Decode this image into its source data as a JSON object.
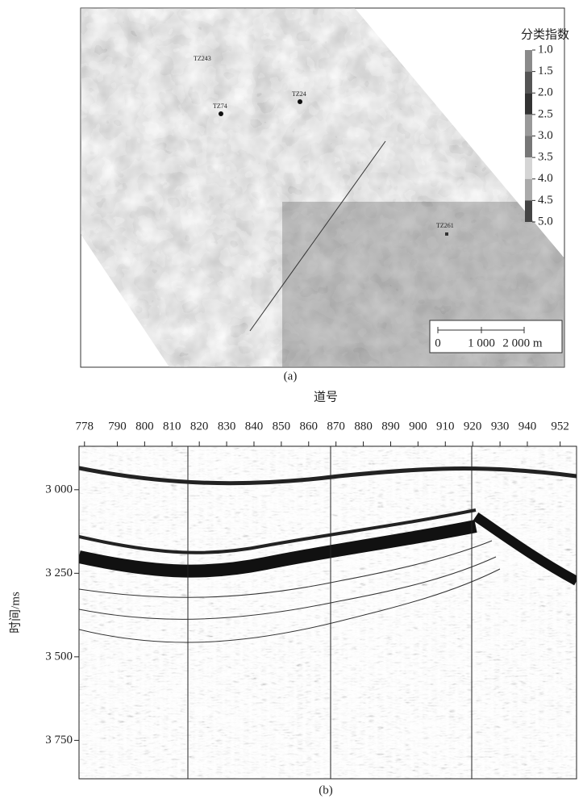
{
  "panel_a": {
    "caption": "(a)",
    "colorbar": {
      "title": "分类指数",
      "ticks": [
        {
          "value": 1,
          "label": "1.0"
        },
        1.5,
        {
          "value": 2,
          "label": "2.0"
        },
        2.5,
        {
          "value": 3,
          "label": "3.0"
        },
        3.5,
        {
          "value": 4,
          "label": "4.0"
        },
        4.5,
        {
          "value": 5,
          "label": "5.0"
        }
      ]
    },
    "wells": [
      "TZ243",
      "TZ24",
      "TZ74",
      "TZ261"
    ],
    "scale_bar": [
      "0",
      "1 000",
      "2 000 m"
    ]
  },
  "panel_b": {
    "caption": "(b)",
    "x_title": "道号",
    "y_title": "时间/ms",
    "xlim": [
      776,
      958
    ],
    "ylim": [
      2870,
      3865
    ],
    "xticks": [
      778,
      790,
      800,
      810,
      820,
      830,
      840,
      850,
      860,
      870,
      880,
      890,
      900,
      910,
      920,
      930,
      940,
      952
    ],
    "yticks": [
      {
        "value": 3000,
        "label": "3 000"
      },
      {
        "value": 3250,
        "label": "3 250"
      },
      {
        "value": 3500,
        "label": "3 500"
      },
      {
        "value": 3750,
        "label": "3 750"
      }
    ]
  }
}
